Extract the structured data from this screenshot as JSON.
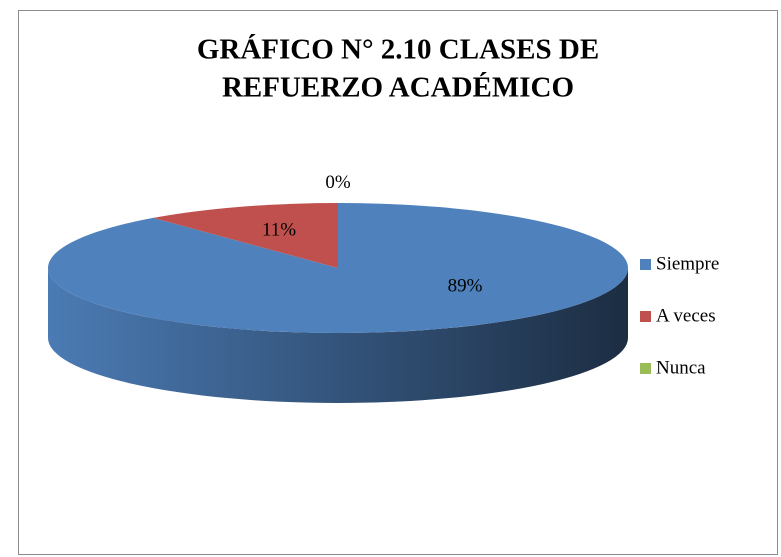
{
  "chart_data": {
    "type": "pie3d",
    "title": [
      "GRÁFICO N° 2.10 CLASES DE",
      "REFUERZO ACADÉMICO"
    ],
    "categories": [
      "Siempre",
      "A veces",
      "Nunca"
    ],
    "values": [
      89,
      11,
      0
    ],
    "value_labels": [
      "89%",
      "11%",
      "0%"
    ],
    "colors": [
      "#4f81bd",
      "#c0504d",
      "#9bbb59"
    ],
    "legend": "right"
  }
}
